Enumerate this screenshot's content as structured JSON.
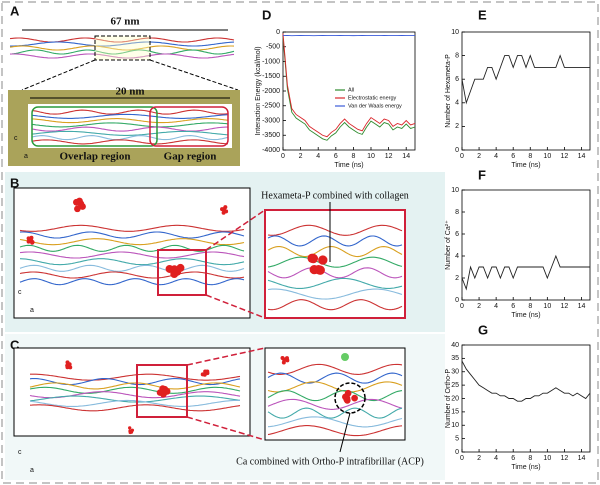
{
  "figure": {
    "panel_a": {
      "label": "A",
      "length_full": "67 nm",
      "length_zoom": "20 nm",
      "overlap": "Overlap region",
      "gap": "Gap region",
      "axis_c": "c",
      "axis_a": "a"
    },
    "panel_b": {
      "label": "B",
      "annotation": "Hexameta-P combined  with collagen",
      "axis_c": "c",
      "axis_a": "a"
    },
    "panel_c": {
      "label": "C",
      "annotation": "Ca combined with Ortho-P intrafibrillar (ACP)",
      "axis_c": "c",
      "axis_a": "a"
    }
  },
  "chart_data": [
    {
      "type": "line",
      "label": "D",
      "xlabel": "Time (ns)",
      "ylabel": "Interaction Energy (kcal/mol)",
      "x": [
        0,
        0.5,
        1,
        1.5,
        2,
        2.5,
        3,
        3.5,
        4,
        4.5,
        5,
        5.5,
        6,
        6.5,
        7,
        7.5,
        8,
        8.5,
        9,
        9.5,
        10,
        10.5,
        11,
        11.5,
        12,
        12.5,
        13,
        13.5,
        14,
        14.5,
        15
      ],
      "series": [
        {
          "name": "All",
          "color": "#2e8b2e",
          "values": [
            -170,
            -1920,
            -2720,
            -2920,
            -3020,
            -3120,
            -3320,
            -3420,
            -3520,
            -3620,
            -3670,
            -3520,
            -3420,
            -3220,
            -3070,
            -3220,
            -3320,
            -3420,
            -3470,
            -3220,
            -3020,
            -3120,
            -3220,
            -3070,
            -3120,
            -3320,
            -3220,
            -3270,
            -3120,
            -3270,
            -3220
          ]
        },
        {
          "name": "Electrostatic energy",
          "color": "#d9262b",
          "values": [
            -50,
            -1800,
            -2600,
            -2800,
            -2900,
            -3000,
            -3200,
            -3300,
            -3400,
            -3500,
            -3550,
            -3400,
            -3300,
            -3100,
            -2950,
            -3100,
            -3200,
            -3300,
            -3350,
            -3100,
            -2900,
            -3000,
            -3100,
            -2950,
            -3000,
            -3200,
            -3100,
            -3150,
            -3000,
            -3150,
            -3100
          ]
        },
        {
          "name": "Van der Waals energy",
          "color": "#3b5bd9",
          "values": [
            -120,
            -115,
            -125,
            -120,
            -118,
            -122,
            -120,
            -125,
            -120,
            -118,
            -120,
            -122,
            -120,
            -119,
            -121,
            -120,
            -123,
            -120,
            -118,
            -120,
            -122,
            -120,
            -121,
            -119,
            -120,
            -122,
            -120,
            -118,
            -120,
            -121,
            -120
          ]
        }
      ],
      "xlim": [
        0,
        15
      ],
      "xticks": [
        0,
        2,
        4,
        6,
        8,
        10,
        12,
        14
      ],
      "ylim": [
        -4000,
        0
      ],
      "yticks": [
        0,
        -500,
        -1000,
        -1500,
        -2000,
        -2500,
        -3000,
        -3500,
        -4000
      ]
    },
    {
      "type": "line",
      "label": "E",
      "xlabel": "Time (ns)",
      "ylabel": "Number of Hexameta-P",
      "x": [
        0,
        0.5,
        1,
        1.5,
        2,
        2.5,
        3,
        3.5,
        4,
        4.5,
        5,
        5.5,
        6,
        6.5,
        7,
        7.5,
        8,
        8.5,
        9,
        9.5,
        10,
        10.5,
        11,
        11.5,
        12,
        12.5,
        13,
        13.5,
        14,
        14.5,
        15
      ],
      "series": [
        {
          "name": "Hexameta-P",
          "color": "#222222",
          "values": [
            6,
            4,
            5,
            6,
            6,
            6,
            7,
            7,
            6,
            7,
            8,
            8,
            7,
            8,
            8,
            7,
            8,
            7,
            7,
            7,
            7,
            7,
            7,
            8,
            7,
            7,
            7,
            7,
            7,
            7,
            7
          ]
        }
      ],
      "xlim": [
        0,
        15
      ],
      "xticks": [
        0,
        2,
        4,
        6,
        8,
        10,
        12,
        14
      ],
      "ylim": [
        0,
        10
      ],
      "yticks": [
        0,
        2,
        4,
        6,
        8,
        10
      ]
    },
    {
      "type": "line",
      "label": "F",
      "xlabel": "Time (ns)",
      "ylabel": "Number of Ca²⁺",
      "x": [
        0,
        0.5,
        1,
        1.5,
        2,
        2.5,
        3,
        3.5,
        4,
        4.5,
        5,
        5.5,
        6,
        6.5,
        7,
        7.5,
        8,
        8.5,
        9,
        9.5,
        10,
        10.5,
        11,
        11.5,
        12,
        12.5,
        13,
        13.5,
        14,
        14.5,
        15
      ],
      "series": [
        {
          "name": "Ca²⁺",
          "color": "#222222",
          "values": [
            2,
            1,
            3,
            2,
            3,
            3,
            2,
            3,
            3,
            2,
            3,
            3,
            2,
            3,
            3,
            3,
            3,
            3,
            3,
            3,
            2,
            3,
            4,
            3,
            3,
            3,
            3,
            3,
            3,
            3,
            3
          ]
        }
      ],
      "xlim": [
        0,
        15
      ],
      "xticks": [
        0,
        2,
        4,
        6,
        8,
        10,
        12,
        14
      ],
      "ylim": [
        0,
        10
      ],
      "yticks": [
        0,
        2,
        4,
        6,
        8,
        10
      ]
    },
    {
      "type": "line",
      "label": "G",
      "xlabel": "Time (ns)",
      "ylabel": "Number of Ortho-P",
      "x": [
        0,
        0.5,
        1,
        1.5,
        2,
        2.5,
        3,
        3.5,
        4,
        4.5,
        5,
        5.5,
        6,
        6.5,
        7,
        7.5,
        8,
        8.5,
        9,
        9.5,
        10,
        10.5,
        11,
        11.5,
        12,
        12.5,
        13,
        13.5,
        14,
        14.5,
        15
      ],
      "series": [
        {
          "name": "Ortho-P",
          "color": "#222222",
          "values": [
            34,
            31,
            29,
            27,
            25,
            24,
            23,
            22,
            22,
            21,
            21,
            20,
            20,
            19,
            19,
            20,
            20,
            21,
            21,
            22,
            22,
            23,
            24,
            23,
            22,
            22,
            21,
            22,
            21,
            20,
            22
          ]
        }
      ],
      "xlim": [
        0,
        15
      ],
      "xticks": [
        0,
        2,
        4,
        6,
        8,
        10,
        12,
        14
      ],
      "ylim": [
        0,
        40
      ],
      "yticks": [
        0,
        5,
        10,
        15,
        20,
        25,
        30,
        35,
        40
      ]
    }
  ]
}
